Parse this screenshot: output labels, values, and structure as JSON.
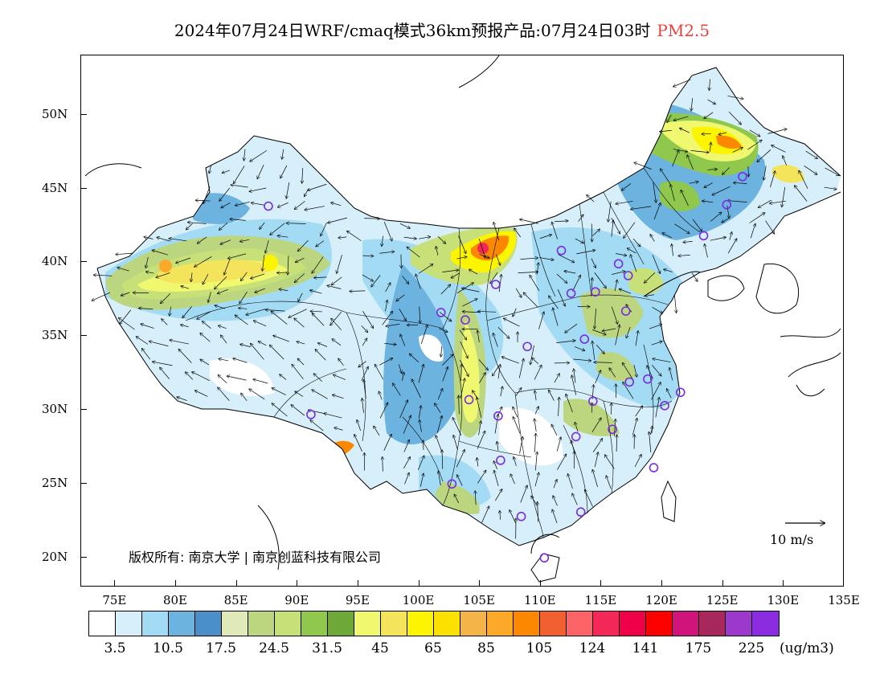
{
  "title": {
    "main": "2024年07月24日WRF/cmaq模式36km预报产品:07月24日03时",
    "species": "PM2.5"
  },
  "axes": {
    "lat_labels": [
      "50N",
      "45N",
      "40N",
      "35N",
      "30N",
      "25N",
      "20N"
    ],
    "lon_labels": [
      "75E",
      "80E",
      "85E",
      "90E",
      "95E",
      "100E",
      "105E",
      "110E",
      "115E",
      "120E",
      "125E",
      "130E",
      "135E"
    ]
  },
  "copyright": "版权所有: 南京大学 | 南京创蓝科技有限公司",
  "wind_scale": {
    "label": "10 m/s"
  },
  "colorbar": {
    "colors": [
      "#ffffff",
      "#d6effa",
      "#a3daf4",
      "#6cb3e0",
      "#4a8fc8",
      "#dfeab8",
      "#bcd680",
      "#c8e078",
      "#8fc84c",
      "#6ea838",
      "#f0f870",
      "#f4e45c",
      "#fcf400",
      "#fce000",
      "#f4b448",
      "#fca828",
      "#fc8800",
      "#f06030",
      "#fc6468",
      "#f42858",
      "#f00048",
      "#fc0000",
      "#d0147c",
      "#a8285c",
      "#9c38cc",
      "#8c2ce0"
    ],
    "labels": [
      "3.5",
      "10.5",
      "17.5",
      "24.5",
      "31.5",
      "45",
      "65",
      "85",
      "105",
      "124",
      "141",
      "175",
      "225"
    ],
    "unit": "(ug/m3)"
  },
  "stations": [
    {
      "lon": 87.6,
      "lat": 43.8
    },
    {
      "lon": 91.1,
      "lat": 29.7
    },
    {
      "lon": 101.8,
      "lat": 36.6
    },
    {
      "lon": 103.8,
      "lat": 36.1
    },
    {
      "lon": 106.3,
      "lat": 38.5
    },
    {
      "lon": 104.1,
      "lat": 30.7
    },
    {
      "lon": 106.5,
      "lat": 29.6
    },
    {
      "lon": 106.7,
      "lat": 26.6
    },
    {
      "lon": 102.7,
      "lat": 25.0
    },
    {
      "lon": 108.4,
      "lat": 22.8
    },
    {
      "lon": 110.3,
      "lat": 20.0
    },
    {
      "lon": 113.3,
      "lat": 23.1
    },
    {
      "lon": 112.9,
      "lat": 28.2
    },
    {
      "lon": 114.3,
      "lat": 30.6
    },
    {
      "lon": 115.9,
      "lat": 28.7
    },
    {
      "lon": 119.3,
      "lat": 26.1
    },
    {
      "lon": 120.2,
      "lat": 30.3
    },
    {
      "lon": 121.5,
      "lat": 31.2
    },
    {
      "lon": 118.8,
      "lat": 32.1
    },
    {
      "lon": 117.3,
      "lat": 31.9
    },
    {
      "lon": 113.6,
      "lat": 34.8
    },
    {
      "lon": 117.0,
      "lat": 36.7
    },
    {
      "lon": 114.5,
      "lat": 38.0
    },
    {
      "lon": 112.5,
      "lat": 37.9
    },
    {
      "lon": 111.7,
      "lat": 40.8
    },
    {
      "lon": 116.4,
      "lat": 39.9
    },
    {
      "lon": 117.2,
      "lat": 39.1
    },
    {
      "lon": 123.4,
      "lat": 41.8
    },
    {
      "lon": 125.3,
      "lat": 43.9
    },
    {
      "lon": 126.6,
      "lat": 45.8
    },
    {
      "lon": 108.9,
      "lat": 34.3
    }
  ]
}
